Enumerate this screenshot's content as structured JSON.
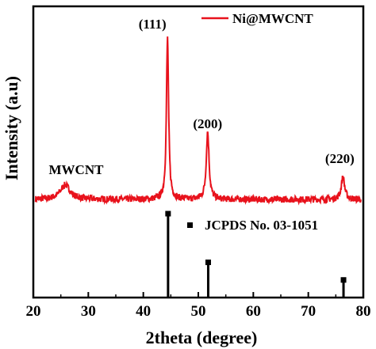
{
  "chart_data": {
    "type": "line",
    "xlabel": "2theta (degree)",
    "ylabel": "Intensity (a.u)",
    "xlim": [
      20,
      80
    ],
    "xticks": [
      20,
      30,
      40,
      50,
      60,
      70,
      80
    ],
    "yticks_shown": false,
    "grid": false,
    "legend": {
      "placement": "top-right",
      "entries": [
        {
          "name": "Ni@MWCNT",
          "style": "line",
          "color": "#e8121c"
        },
        {
          "name": "JCPDS No. 03-1051",
          "style": "square-marker",
          "color": "#000000"
        }
      ]
    },
    "series": [
      {
        "name": "Ni@MWCNT",
        "color": "#e8121c",
        "profile": {
          "baseline": 0.0,
          "noise_amplitude": 0.04,
          "peaks": [
            {
              "x": 25.8,
              "height": 0.09,
              "width": 1.6
            },
            {
              "x": 44.4,
              "height": 1.0,
              "width": 0.35
            },
            {
              "x": 51.7,
              "height": 0.42,
              "width": 0.45
            },
            {
              "x": 76.3,
              "height": 0.14,
              "width": 0.55
            }
          ]
        }
      },
      {
        "name": "JCPDS No. 03-1051",
        "type": "stick",
        "color": "#000000",
        "x": [
          44.5,
          51.8,
          76.4
        ],
        "values": [
          100,
          42,
          21
        ]
      }
    ],
    "annotations": [
      {
        "text": "(111)",
        "x": 44.4
      },
      {
        "text": "(200)",
        "x": 51.7
      },
      {
        "text": "(220)",
        "x": 76.3
      },
      {
        "text": "MWCNT",
        "x": 25.8
      }
    ]
  }
}
